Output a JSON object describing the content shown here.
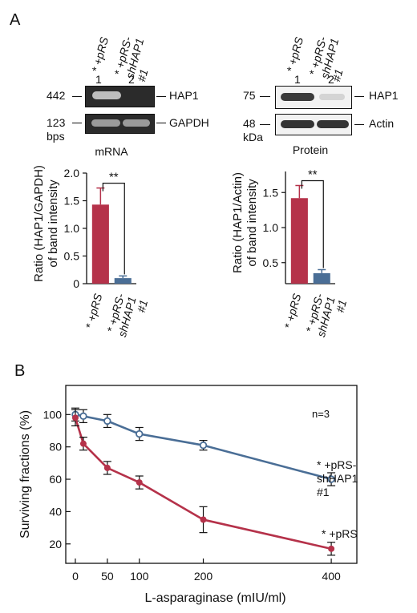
{
  "panelA": {
    "letter": "A",
    "left_lanes": [
      "* +pRS",
      "* +pRS-\nshHAP1\n#1"
    ],
    "right_lanes": [
      "* +pRS",
      "* +pRS-\nshHAP1\n#1"
    ],
    "left_lane_numbers": [
      "1",
      "2"
    ],
    "right_lane_numbers": [
      "1",
      "2"
    ],
    "left_markers": [
      "442",
      "123"
    ],
    "left_marker_unit": "bps",
    "left_bands": [
      "HAP1",
      "GAPDH"
    ],
    "right_markers": [
      "75",
      "48"
    ],
    "right_marker_unit": "kDa",
    "right_bands": [
      "HAP1",
      "Actin"
    ]
  },
  "chart_data": [
    {
      "type": "bar",
      "title": "mRNA",
      "ylabel": "Ratio (HAP1/GAPDH)\nof band intensity",
      "categories": [
        "* +pRS",
        "* +pRS-\nshHAP1\n#1"
      ],
      "values": [
        1.43,
        0.1
      ],
      "errors": [
        0.3,
        0.04
      ],
      "colors": [
        "#b5324a",
        "#4a6e96"
      ],
      "ylim": [
        0,
        2.0
      ],
      "yticks": [
        "0",
        "0.5",
        "1.0",
        "1.5",
        "2.0"
      ],
      "significance": "**"
    },
    {
      "type": "bar",
      "title": "Protein",
      "ylabel": "Ratio (HAP1/Actin)\nof band intensity",
      "categories": [
        "* +pRS",
        "* +pRS-\nshHAP1\n#1"
      ],
      "values": [
        1.42,
        0.35
      ],
      "errors": [
        0.18,
        0.05
      ],
      "colors": [
        "#b5324a",
        "#4a6e96"
      ],
      "ylim": [
        0.2,
        1.8
      ],
      "yticks": [
        "0.5",
        "1.0",
        "1.5"
      ],
      "significance": "**"
    },
    {
      "type": "line",
      "panel": "B",
      "xlabel": "L-asparaginase (mIU/ml)",
      "ylabel": "Surviving fractions (%)",
      "xticks": [
        "0",
        "50",
        "100",
        "200",
        "400"
      ],
      "yticks": [
        "20",
        "40",
        "60",
        "80",
        "100"
      ],
      "xlim": [
        -15,
        440
      ],
      "ylim": [
        8,
        118
      ],
      "annotation": "n=3",
      "series": [
        {
          "name": "* +pRS-\nshHAP1\n#1",
          "color": "#4a6e96",
          "marker": "open-circle",
          "x": [
            0,
            12.5,
            50,
            100,
            200,
            400
          ],
          "y": [
            100,
            99,
            96,
            88,
            81,
            60
          ],
          "err": [
            4,
            4,
            4,
            4,
            3,
            4
          ]
        },
        {
          "name": "* +pRS",
          "color": "#b5324a",
          "marker": "filled-circle",
          "x": [
            0,
            12.5,
            50,
            100,
            200,
            400
          ],
          "y": [
            98,
            82,
            67,
            58,
            35,
            17
          ],
          "err": [
            5,
            4,
            4,
            4,
            8,
            4
          ]
        }
      ]
    }
  ]
}
